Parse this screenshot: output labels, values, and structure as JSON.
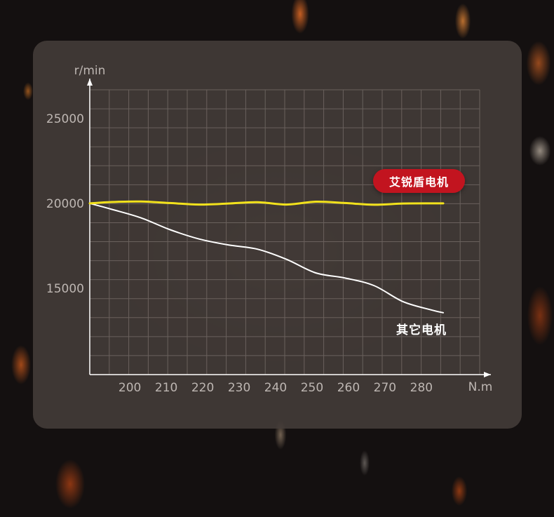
{
  "chart_data": {
    "type": "line",
    "ylabel": "r/min",
    "xlabel": "N.m",
    "x_ticks": [
      200,
      210,
      220,
      230,
      240,
      250,
      260,
      270,
      280
    ],
    "y_ticks": [
      15000,
      20000,
      25000
    ],
    "xlim": [
      189,
      296
    ],
    "ylim": [
      9900,
      26700
    ],
    "grid": true,
    "series": [
      {
        "name": "艾锐盾电机",
        "color": "#f2e21c",
        "x": [
          189,
          195,
          203,
          211,
          219,
          227,
          235,
          243,
          251,
          259,
          267,
          275,
          283,
          286
        ],
        "y": [
          20000,
          20080,
          20110,
          20020,
          19930,
          19990,
          20070,
          19930,
          20100,
          20020,
          19920,
          19990,
          20000,
          20000
        ]
      },
      {
        "name": "其它电机",
        "color": "#ffffff",
        "x": [
          189,
          195,
          203,
          211,
          219,
          227,
          235,
          243,
          251,
          259,
          267,
          275,
          283,
          286
        ],
        "y": [
          20000,
          19650,
          19150,
          18450,
          17900,
          17550,
          17300,
          16700,
          15900,
          15600,
          15150,
          14200,
          13700,
          13550
        ]
      }
    ]
  }
}
